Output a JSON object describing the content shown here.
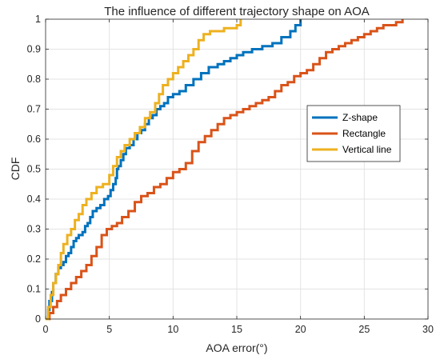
{
  "chart_data": {
    "type": "line",
    "title": "The influence of different trajectory shape on AOA",
    "xlabel": "AOA error(°)",
    "ylabel": "CDF",
    "xlim": [
      0,
      30
    ],
    "ylim": [
      0,
      1
    ],
    "xticks": [
      "0",
      "5",
      "10",
      "15",
      "20",
      "25",
      "30"
    ],
    "yticks": [
      "0",
      "0.1",
      "0.2",
      "0.3",
      "0.4",
      "0.5",
      "0.6",
      "0.7",
      "0.8",
      "0.9",
      "1"
    ],
    "grid": true,
    "legend_position": "right",
    "series": [
      {
        "name": "Z-shape",
        "color": "#0072BD",
        "x": [
          0,
          0.2,
          0.3,
          0.5,
          0.6,
          0.8,
          1.0,
          1.2,
          1.4,
          1.6,
          1.8,
          2.0,
          2.2,
          2.4,
          2.6,
          2.9,
          3.1,
          3.3,
          3.5,
          3.7,
          4.0,
          4.3,
          4.6,
          4.9,
          5.1,
          5.3,
          5.5,
          5.6,
          5.7,
          5.9,
          6.1,
          6.3,
          6.6,
          6.9,
          7.2,
          7.5,
          7.8,
          8.1,
          8.4,
          8.7,
          9.0,
          9.3,
          9.6,
          10.0,
          10.5,
          11.0,
          11.6,
          12.2,
          12.8,
          13.5,
          14.0,
          14.5,
          15.0,
          15.5,
          16.2,
          17.0,
          17.8,
          18.5,
          19.2,
          19.6,
          20.0
        ],
        "y": [
          0,
          0.03,
          0.06,
          0.09,
          0.12,
          0.15,
          0.17,
          0.18,
          0.19,
          0.21,
          0.22,
          0.24,
          0.26,
          0.27,
          0.28,
          0.29,
          0.31,
          0.32,
          0.34,
          0.36,
          0.37,
          0.38,
          0.4,
          0.41,
          0.43,
          0.45,
          0.47,
          0.5,
          0.51,
          0.53,
          0.55,
          0.57,
          0.58,
          0.6,
          0.62,
          0.63,
          0.65,
          0.67,
          0.68,
          0.7,
          0.71,
          0.72,
          0.74,
          0.75,
          0.76,
          0.78,
          0.8,
          0.82,
          0.84,
          0.85,
          0.86,
          0.87,
          0.88,
          0.89,
          0.9,
          0.91,
          0.92,
          0.94,
          0.96,
          0.98,
          1.0
        ]
      },
      {
        "name": "Rectangle",
        "color": "#D95319",
        "x": [
          0,
          0.3,
          0.6,
          0.9,
          1.2,
          1.6,
          2.0,
          2.4,
          2.8,
          3.2,
          3.6,
          4.0,
          4.4,
          4.8,
          5.2,
          5.6,
          6.0,
          6.5,
          7.0,
          7.5,
          8.0,
          8.5,
          9.0,
          9.5,
          10.0,
          10.5,
          11.0,
          11.5,
          12.0,
          12.5,
          13.0,
          13.5,
          14.0,
          14.5,
          15.0,
          15.5,
          16.0,
          16.5,
          17.0,
          17.5,
          18.0,
          18.5,
          19.0,
          19.5,
          20.0,
          20.5,
          21.0,
          21.5,
          22.0,
          22.5,
          23.0,
          23.5,
          24.0,
          24.5,
          25.0,
          25.5,
          26.0,
          26.5,
          27.0,
          27.5,
          28.0
        ],
        "y": [
          0,
          0.02,
          0.04,
          0.06,
          0.08,
          0.1,
          0.12,
          0.14,
          0.16,
          0.18,
          0.21,
          0.24,
          0.28,
          0.3,
          0.31,
          0.32,
          0.34,
          0.36,
          0.39,
          0.41,
          0.42,
          0.44,
          0.45,
          0.47,
          0.49,
          0.5,
          0.52,
          0.56,
          0.59,
          0.61,
          0.63,
          0.65,
          0.67,
          0.68,
          0.69,
          0.7,
          0.71,
          0.72,
          0.73,
          0.74,
          0.76,
          0.78,
          0.79,
          0.81,
          0.82,
          0.83,
          0.85,
          0.87,
          0.89,
          0.9,
          0.91,
          0.92,
          0.93,
          0.94,
          0.95,
          0.96,
          0.97,
          0.98,
          0.98,
          0.99,
          1.0
        ]
      },
      {
        "name": "Vertical line",
        "color": "#EDB120",
        "x": [
          0,
          0.2,
          0.4,
          0.6,
          0.8,
          1.0,
          1.2,
          1.4,
          1.7,
          2.0,
          2.3,
          2.6,
          2.9,
          3.2,
          3.6,
          4.0,
          4.5,
          5.0,
          5.3,
          5.6,
          5.9,
          6.2,
          6.6,
          7.0,
          7.4,
          7.8,
          8.2,
          8.6,
          8.9,
          9.2,
          9.6,
          10.0,
          10.4,
          10.8,
          11.2,
          11.6,
          12.0,
          12.4,
          12.9,
          13.5,
          14.0,
          14.6,
          15.0,
          15.3
        ],
        "y": [
          0,
          0.04,
          0.08,
          0.12,
          0.15,
          0.18,
          0.22,
          0.25,
          0.28,
          0.3,
          0.33,
          0.35,
          0.38,
          0.4,
          0.42,
          0.44,
          0.45,
          0.48,
          0.51,
          0.54,
          0.56,
          0.58,
          0.6,
          0.62,
          0.64,
          0.67,
          0.69,
          0.72,
          0.75,
          0.78,
          0.8,
          0.82,
          0.84,
          0.86,
          0.88,
          0.9,
          0.93,
          0.95,
          0.96,
          0.96,
          0.97,
          0.97,
          0.98,
          1.0
        ]
      }
    ]
  }
}
